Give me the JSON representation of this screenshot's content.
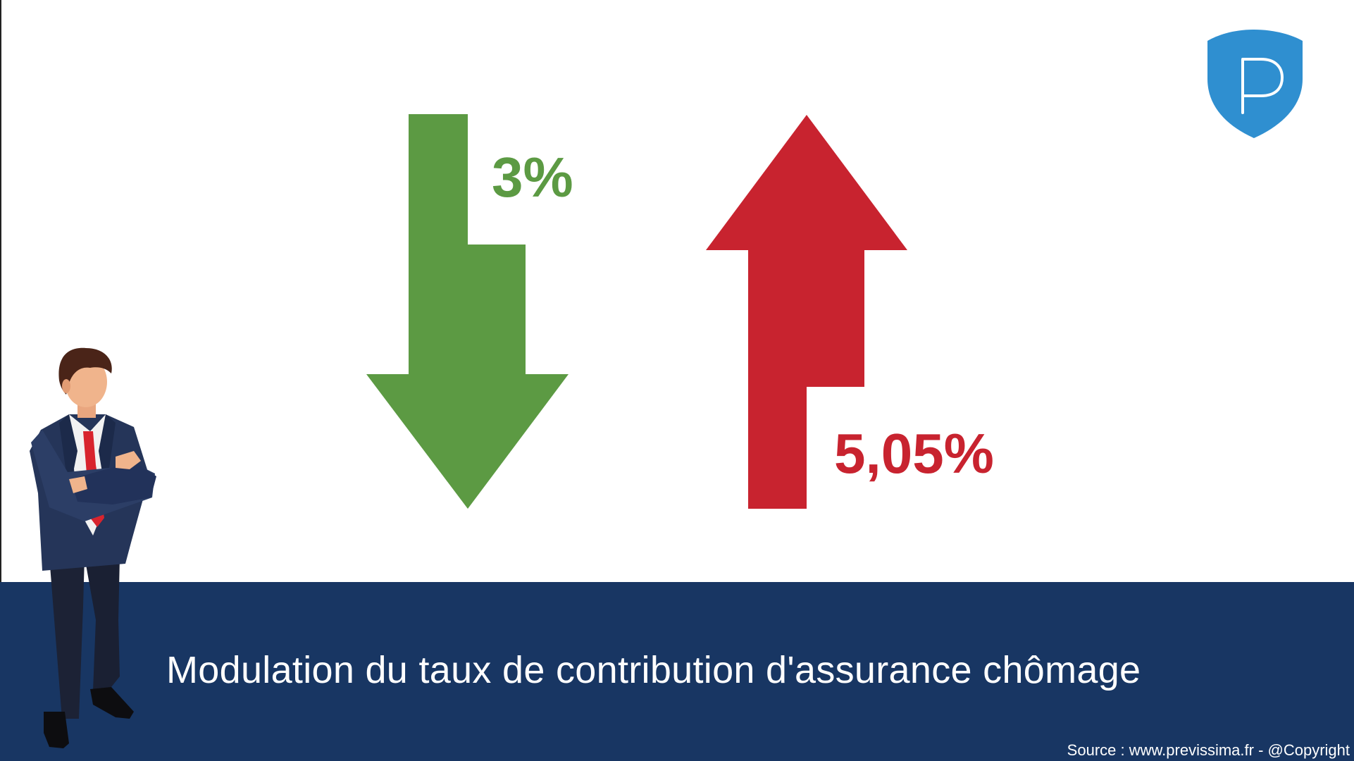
{
  "title": "Modulation du taux de contribution d'assurance chômage",
  "source": "Source : www.previssima.fr - @Copyright",
  "decrease": {
    "value": "3%",
    "direction": "down",
    "color": "#5c9a43"
  },
  "increase": {
    "value": "5,05%",
    "direction": "up",
    "color": "#c8232f"
  },
  "logo": {
    "letter": "P",
    "color": "#2f8fd0"
  },
  "banner_color": "#183663",
  "icons": [
    "arrow-down-icon",
    "arrow-up-icon",
    "previssima-shield-logo",
    "businessman-illustration"
  ]
}
